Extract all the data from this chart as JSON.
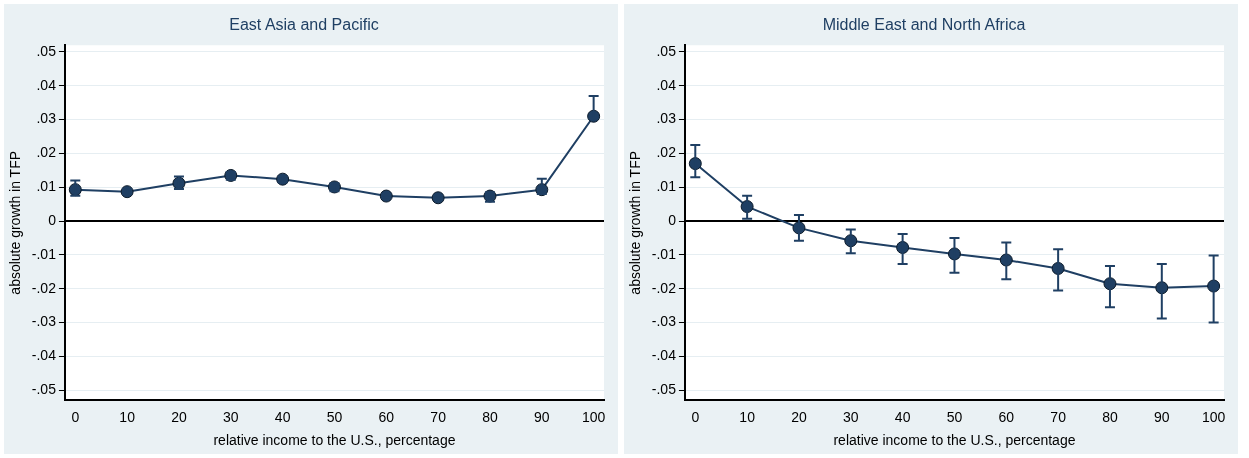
{
  "chart_data": [
    {
      "type": "line",
      "title": "East Asia and Pacific",
      "xlabel": "relative income to the U.S., percentage",
      "ylabel": "absolute growth in TFP",
      "x": [
        0,
        10,
        20,
        30,
        40,
        50,
        60,
        70,
        80,
        90,
        100
      ],
      "series": [
        {
          "color": "#1f3f63",
          "values": [
            0.0093,
            0.0087,
            0.0112,
            0.0135,
            0.0124,
            0.0101,
            0.0074,
            0.0069,
            0.0074,
            0.0093,
            0.031
          ],
          "errors": [
            [
              0.0075,
              0.012
            ],
            [
              0.008,
              0.0095
            ],
            [
              0.0095,
              0.0132
            ],
            [
              0.0122,
              0.0145
            ],
            [
              0.0115,
              0.0132
            ],
            [
              0.0088,
              0.0112
            ],
            [
              0.007,
              0.008
            ],
            [
              0.0065,
              0.0075
            ],
            [
              0.0057,
              0.0085
            ],
            [
              0.008,
              0.0125
            ],
            [
              0.0305,
              0.037
            ]
          ]
        }
      ],
      "xlim": [
        -2,
        102
      ],
      "xticks": [
        0,
        10,
        20,
        30,
        40,
        50,
        60,
        70,
        80,
        90,
        100
      ],
      "ylim": [
        -0.053,
        0.052
      ],
      "yticks": [
        {
          "value": -0.05,
          "label": "-.05"
        },
        {
          "value": -0.04,
          "label": "-.04"
        },
        {
          "value": -0.03,
          "label": "-.03"
        },
        {
          "value": -0.02,
          "label": "-.02"
        },
        {
          "value": -0.01,
          "label": "-.01"
        },
        0,
        {
          "value": 0.01,
          "label": ".01"
        },
        {
          "value": 0.02,
          "label": ".02"
        },
        {
          "value": 0.03,
          "label": ".03"
        },
        {
          "value": 0.04,
          "label": ".04"
        },
        {
          "value": 0.05,
          "label": ".05"
        }
      ],
      "ref_lines": [
        {
          "axis": "y",
          "value": 0,
          "color": "#000000"
        }
      ],
      "grid": "y",
      "legend": false,
      "marker": "circle",
      "line_style": "solid"
    },
    {
      "type": "line",
      "title": "Middle East and North Africa",
      "xlabel": "relative income to the U.S., percentage",
      "ylabel": "absolute growth in TFP",
      "x": [
        0,
        10,
        20,
        30,
        40,
        50,
        60,
        70,
        80,
        90,
        100
      ],
      "series": [
        {
          "color": "#1f3f63",
          "values": [
            0.017,
            0.0043,
            -0.002,
            -0.0058,
            -0.0078,
            -0.0097,
            -0.0115,
            -0.014,
            -0.0185,
            -0.0197,
            -0.0192
          ],
          "errors": [
            [
              0.013,
              0.0225
            ],
            [
              0.0007,
              0.0075
            ],
            [
              -0.0058,
              0.0018
            ],
            [
              -0.0095,
              -0.0025
            ],
            [
              -0.0127,
              -0.0038
            ],
            [
              -0.0153,
              -0.005
            ],
            [
              -0.0172,
              -0.0063
            ],
            [
              -0.0205,
              -0.0083
            ],
            [
              -0.0255,
              -0.0133
            ],
            [
              -0.0288,
              -0.0127
            ],
            [
              -0.03,
              -0.0102
            ]
          ]
        }
      ],
      "xlim": [
        -2,
        102
      ],
      "xticks": [
        0,
        10,
        20,
        30,
        40,
        50,
        60,
        70,
        80,
        90,
        100
      ],
      "ylim": [
        -0.053,
        0.052
      ],
      "yticks": [
        {
          "value": -0.05,
          "label": "-.05"
        },
        {
          "value": -0.04,
          "label": "-.04"
        },
        {
          "value": -0.03,
          "label": "-.03"
        },
        {
          "value": -0.02,
          "label": "-.02"
        },
        {
          "value": -0.01,
          "label": "-.01"
        },
        0,
        {
          "value": 0.01,
          "label": ".01"
        },
        {
          "value": 0.02,
          "label": ".02"
        },
        {
          "value": 0.03,
          "label": ".03"
        },
        {
          "value": 0.04,
          "label": ".04"
        },
        {
          "value": 0.05,
          "label": ".05"
        }
      ],
      "ref_lines": [
        {
          "axis": "y",
          "value": 0,
          "color": "#000000"
        }
      ],
      "grid": "y",
      "legend": false,
      "marker": "circle",
      "line_style": "solid"
    }
  ]
}
